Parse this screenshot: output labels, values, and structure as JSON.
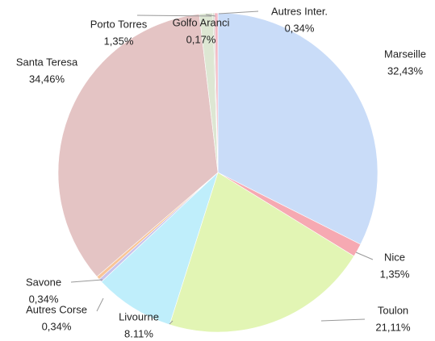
{
  "chart_data": {
    "type": "pie",
    "categories": [
      "Marseille",
      "Nice",
      "Toulon",
      "Livourne",
      "Autres Corse",
      "Savone",
      "Santa Teresa",
      "Porto Torres",
      "Golfo Aranci",
      "Autres Inter."
    ],
    "values": [
      32.43,
      1.35,
      21.11,
      8.11,
      0.34,
      0.34,
      34.46,
      1.35,
      0.17,
      0.34
    ],
    "value_labels": [
      "32,43%",
      "1,35%",
      "21,11%",
      "8.11%",
      "0,34%",
      "0,34%",
      "34,46%",
      "1,35%",
      "0,17%",
      "0,34%"
    ],
    "colors": [
      "#c9dcf8",
      "#f6a9b2",
      "#e2f5b4",
      "#bfeefb",
      "#c9c3ea",
      "#f8c597",
      "#e4c4c4",
      "#dde7d3",
      "#d9dcd0",
      "#f3b9c4"
    ]
  }
}
